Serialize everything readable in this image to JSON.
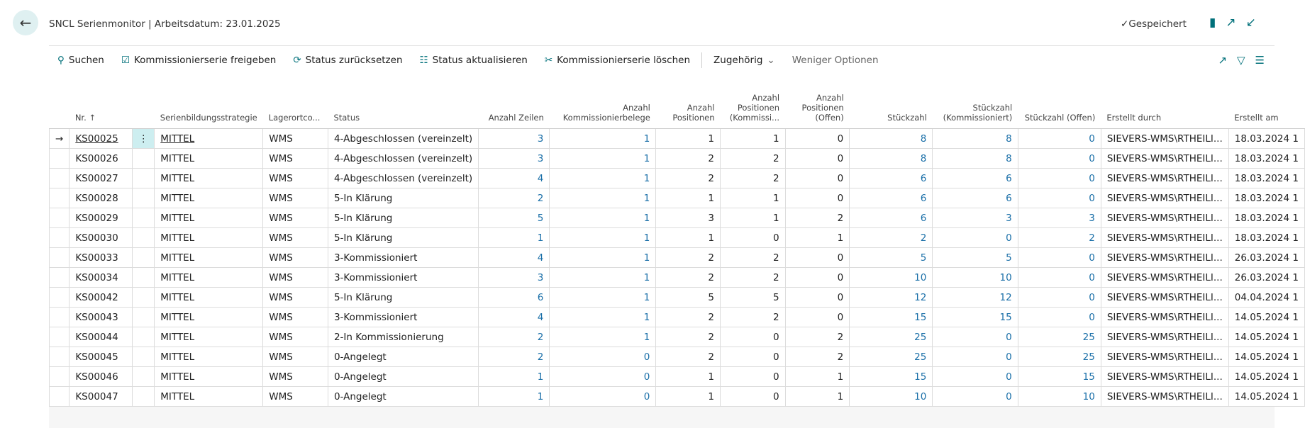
{
  "header": {
    "title": "SNCL Serienmonitor | Arbeitsdatum: 23.01.2025",
    "saved": "Gespeichert"
  },
  "toolbar": {
    "actions": [
      "Suchen",
      "Kommissionierserie freigeben",
      "Status zurücksetzen",
      "Status aktualisieren",
      "Kommissionierserie löschen"
    ],
    "related": "Zugehörig",
    "less": "Weniger Optionen"
  },
  "table": {
    "columns": [
      "Nr.",
      "Serienbildungsstrategie",
      "Lagerortco...",
      "Status",
      "Anzahl Zeilen",
      "Anzahl Kommissionierbelege",
      "Anzahl Positionen",
      "Anzahl Positionen (Kommissi...",
      "Anzahl Positionen (Offen)",
      "Stückzahl",
      "Stückzahl (Kommissioniert)",
      "Stückzahl (Offen)",
      "Erstellt durch",
      "Erstellt am"
    ],
    "rows": [
      [
        "KS00025",
        "MITTEL",
        "WMS",
        "4-Abgeschlossen (vereinzelt)",
        3,
        1,
        1,
        1,
        0,
        8,
        8,
        0,
        "SIEVERS-WMS\\RTHEILI...",
        "18.03.2024 1"
      ],
      [
        "KS00026",
        "MITTEL",
        "WMS",
        "4-Abgeschlossen (vereinzelt)",
        3,
        1,
        2,
        2,
        0,
        8,
        8,
        0,
        "SIEVERS-WMS\\RTHEILI...",
        "18.03.2024 1"
      ],
      [
        "KS00027",
        "MITTEL",
        "WMS",
        "4-Abgeschlossen (vereinzelt)",
        4,
        1,
        2,
        2,
        0,
        6,
        6,
        0,
        "SIEVERS-WMS\\RTHEILI...",
        "18.03.2024 1"
      ],
      [
        "KS00028",
        "MITTEL",
        "WMS",
        "5-In Klärung",
        2,
        1,
        1,
        1,
        0,
        6,
        6,
        0,
        "SIEVERS-WMS\\RTHEILI...",
        "18.03.2024 1"
      ],
      [
        "KS00029",
        "MITTEL",
        "WMS",
        "5-In Klärung",
        5,
        1,
        3,
        1,
        2,
        6,
        3,
        3,
        "SIEVERS-WMS\\RTHEILI...",
        "18.03.2024 1"
      ],
      [
        "KS00030",
        "MITTEL",
        "WMS",
        "5-In Klärung",
        1,
        1,
        1,
        0,
        1,
        2,
        0,
        2,
        "SIEVERS-WMS\\RTHEILI...",
        "18.03.2024 1"
      ],
      [
        "KS00033",
        "MITTEL",
        "WMS",
        "3-Kommissioniert",
        4,
        1,
        2,
        2,
        0,
        5,
        5,
        0,
        "SIEVERS-WMS\\RTHEILI...",
        "26.03.2024 1"
      ],
      [
        "KS00034",
        "MITTEL",
        "WMS",
        "3-Kommissioniert",
        3,
        1,
        2,
        2,
        0,
        10,
        10,
        0,
        "SIEVERS-WMS\\RTHEILI...",
        "26.03.2024 1"
      ],
      [
        "KS00042",
        "MITTEL",
        "WMS",
        "5-In Klärung",
        6,
        1,
        5,
        5,
        0,
        12,
        12,
        0,
        "SIEVERS-WMS\\RTHEILI...",
        "04.04.2024 1"
      ],
      [
        "KS00043",
        "MITTEL",
        "WMS",
        "3-Kommissioniert",
        4,
        1,
        2,
        2,
        0,
        15,
        15,
        0,
        "SIEVERS-WMS\\RTHEILI...",
        "14.05.2024 1"
      ],
      [
        "KS00044",
        "MITTEL",
        "WMS",
        "2-In Kommissionierung",
        2,
        1,
        2,
        0,
        2,
        25,
        0,
        25,
        "SIEVERS-WMS\\RTHEILI...",
        "14.05.2024 1"
      ],
      [
        "KS00045",
        "MITTEL",
        "WMS",
        "0-Angelegt",
        2,
        0,
        2,
        0,
        2,
        25,
        0,
        25,
        "SIEVERS-WMS\\RTHEILI...",
        "14.05.2024 1"
      ],
      [
        "KS00046",
        "MITTEL",
        "WMS",
        "0-Angelegt",
        1,
        0,
        1,
        0,
        1,
        15,
        0,
        15,
        "SIEVERS-WMS\\RTHEILI...",
        "14.05.2024 1"
      ],
      [
        "KS00047",
        "MITTEL",
        "WMS",
        "0-Angelegt",
        1,
        0,
        1,
        0,
        1,
        10,
        0,
        10,
        "SIEVERS-WMS\\RTHEILI...",
        "14.05.2024 1"
      ]
    ]
  }
}
